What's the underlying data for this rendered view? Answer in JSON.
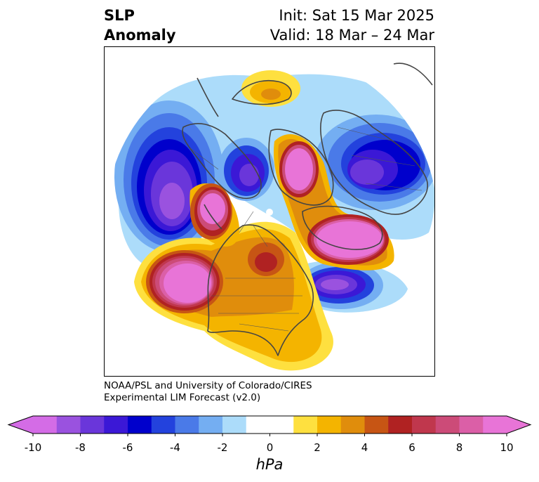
{
  "title": {
    "variable_line1": "SLP",
    "variable_line2": "Anomaly",
    "init": "Init: Sat 15 Mar 2025",
    "valid": "Valid: 18 Mar – 24 Mar"
  },
  "credit": {
    "line1": "NOAA/PSL and University of Colorado/CIRES",
    "line2": "Experimental LIM Forecast (v2.0)"
  },
  "colorbar": {
    "units": "hPa",
    "tick_labels": [
      "-10",
      "-8",
      "-6",
      "-4",
      "-2",
      "0",
      "2",
      "4",
      "6",
      "8",
      "10"
    ],
    "min": -10,
    "max": 10,
    "extend": "both",
    "colors": [
      "#d46ce6",
      "#9a52df",
      "#6a36da",
      "#3b18d6",
      "#0000cc",
      "#2342dd",
      "#4a7ae8",
      "#74aef2",
      "#acdcfa",
      "#ffffff",
      "#ffffff",
      "#fee03f",
      "#f4b400",
      "#e08d0c",
      "#c75514",
      "#b02222",
      "#c0374d",
      "#cc4b78",
      "#db5fa7",
      "#e874d7"
    ]
  },
  "map": {
    "projection": "north-polar-stereographic",
    "coastline_color": "#444444"
  }
}
